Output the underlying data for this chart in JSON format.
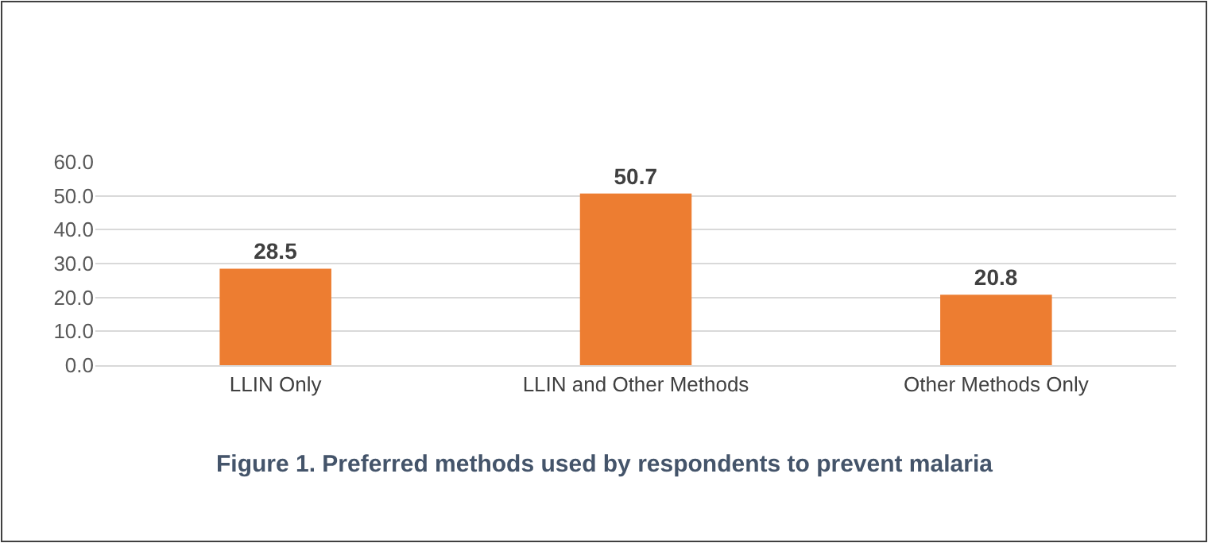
{
  "chart_data": {
    "type": "bar",
    "categories": [
      "LLIN Only",
      "LLIN and Other Methods",
      "Other Methods Only"
    ],
    "values": [
      28.5,
      50.7,
      20.8
    ],
    "color": "#ed7d31",
    "ylim": [
      0,
      60
    ],
    "yticks": [
      {
        "value": 0,
        "label": "0.0"
      },
      {
        "value": 10,
        "label": "10.0"
      },
      {
        "value": 20,
        "label": "20.0"
      },
      {
        "value": 30,
        "label": "30.0"
      },
      {
        "value": 40,
        "label": "40.0"
      },
      {
        "value": 50,
        "label": "50.0"
      },
      {
        "value": 60,
        "label": "60.0"
      }
    ],
    "grid": "y",
    "data_labels": true,
    "legend": false,
    "annotations": [
      "Figure 1. Preferred methods used by respondents to prevent malaria"
    ]
  }
}
